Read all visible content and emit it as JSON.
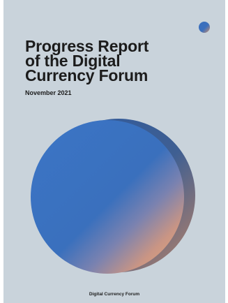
{
  "cover": {
    "title_lines": [
      "Progress Report",
      "of the Digital",
      "Currency Forum"
    ],
    "date": "November 2021",
    "footer": "Digital Currency Forum",
    "colors": {
      "background": "#c9d3db",
      "blue": "#3a6fbd",
      "peach": "#e0a37f",
      "text": "#1c1c1c"
    },
    "icons": [
      "corner-dot-icon",
      "gradient-orb-graphic"
    ]
  }
}
